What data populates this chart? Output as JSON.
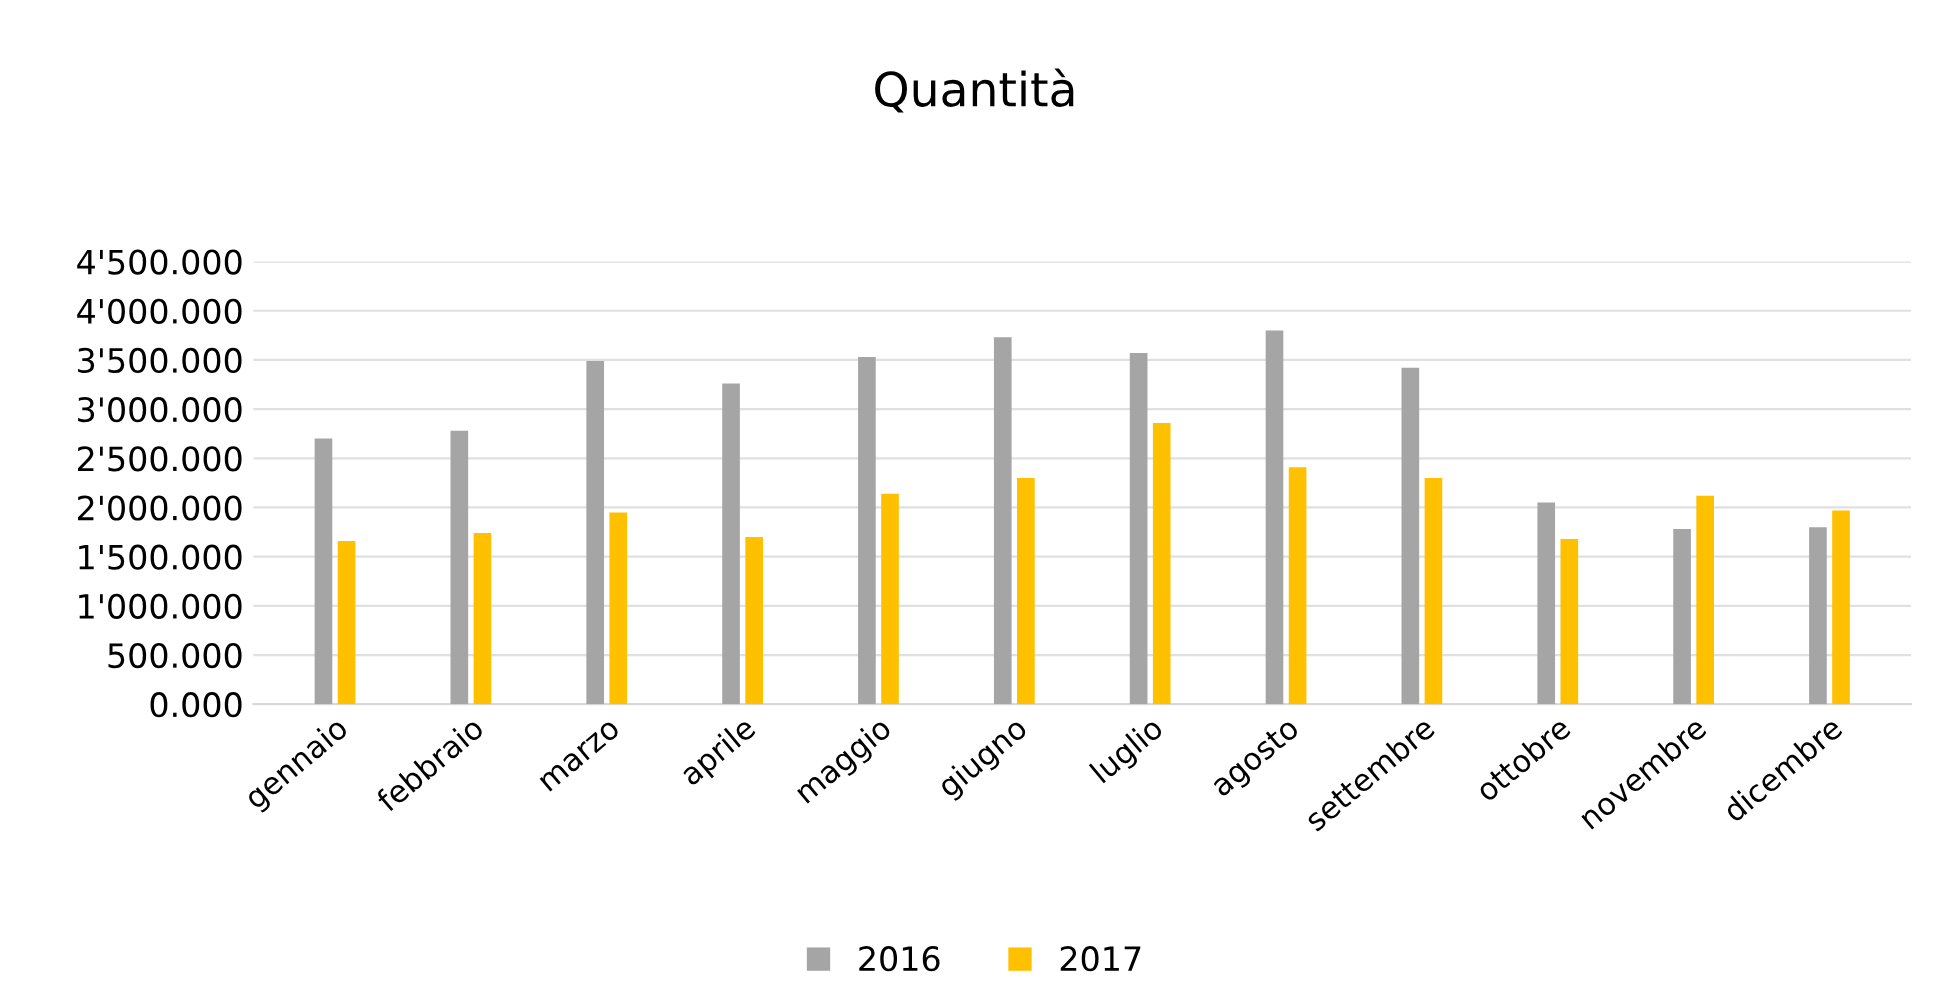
{
  "chart_data": {
    "type": "bar",
    "title": "Quantità",
    "categories": [
      "gennaio",
      "febbraio",
      "marzo",
      "aprile",
      "maggio",
      "giugno",
      "luglio",
      "agosto",
      "settembre",
      "ottobre",
      "novembre",
      "dicembre"
    ],
    "series": [
      {
        "name": "2016",
        "color": "#a5a5a5",
        "values": [
          2700,
          2780,
          3490,
          3260,
          3530,
          3730,
          3570,
          3800,
          3420,
          2050,
          1780,
          1800
        ]
      },
      {
        "name": "2017",
        "color": "#ffc000",
        "values": [
          1660,
          1740,
          1950,
          1700,
          2140,
          2300,
          2860,
          2410,
          2300,
          1680,
          2120,
          1970
        ]
      }
    ],
    "ylim": [
      0,
      4500
    ],
    "yticks": [
      {
        "value": 0,
        "label": "0.000"
      },
      {
        "value": 500,
        "label": "500.000"
      },
      {
        "value": 1000,
        "label": "1'000.000"
      },
      {
        "value": 1500,
        "label": "1'500.000"
      },
      {
        "value": 2000,
        "label": "2'000.000"
      },
      {
        "value": 2500,
        "label": "2'500.000"
      },
      {
        "value": 3000,
        "label": "3'000.000"
      },
      {
        "value": 3500,
        "label": "3'500.000"
      },
      {
        "value": 4000,
        "label": "4'000.000"
      },
      {
        "value": 4500,
        "label": "4'500.000"
      }
    ],
    "grid": "y",
    "legend": "bottom"
  }
}
